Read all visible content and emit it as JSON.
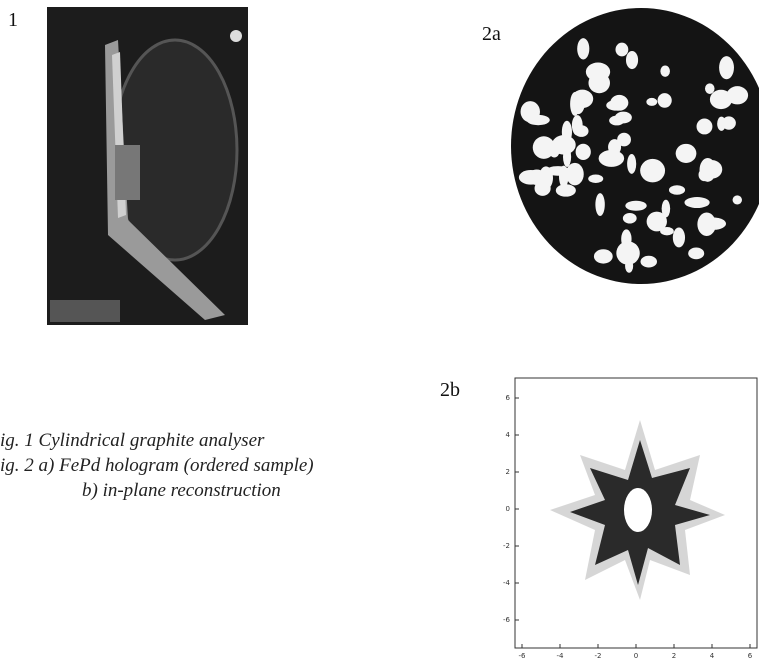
{
  "figure1": {
    "label": "1"
  },
  "figure2a": {
    "label": "2a"
  },
  "figure2b": {
    "label": "2b",
    "xticks": [
      -6,
      -4,
      -2,
      0,
      2,
      4,
      6
    ],
    "yticks": [
      6,
      4,
      2,
      0,
      -2,
      -4,
      -6
    ]
  },
  "caption": {
    "lines": [
      "ig. 1  Cylindrical graphite analyser",
      "ig. 2 a) FePd hologram (ordered sample)",
      "b) in-plane reconstruction"
    ]
  }
}
